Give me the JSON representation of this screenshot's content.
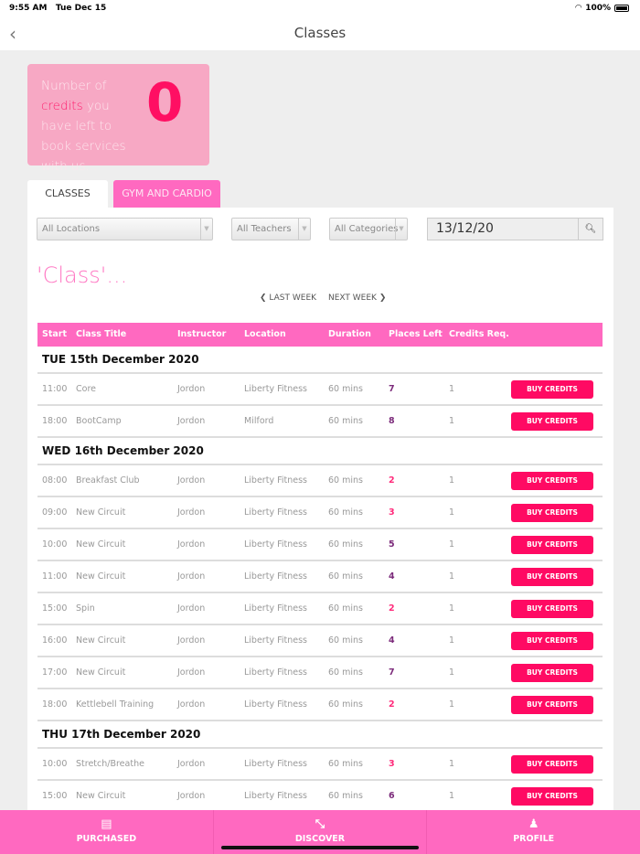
{
  "status": {
    "time": "9:55 AM",
    "date": "Tue Dec 15",
    "battery": "100%"
  },
  "nav": {
    "title": "Classes"
  },
  "credits": {
    "text_before": "Number of",
    "highlight": "credits",
    "text_after": "you have left to book services with us...",
    "count": "0"
  },
  "tabs": [
    {
      "label": "CLASSES",
      "active": true
    },
    {
      "label": "GYM AND CARDIO",
      "active": false
    }
  ],
  "filters": {
    "location": "All Locations",
    "teacher": "All Teachers",
    "category": "All Categories",
    "date": "13/12/20"
  },
  "page_title": "'Class'...",
  "week_nav": {
    "prev": "LAST WEEK",
    "next": "NEXT WEEK"
  },
  "columns": [
    "Start",
    "Class Title",
    "Instructor",
    "Location",
    "Duration",
    "Places Left",
    "Credits Req."
  ],
  "buy_label": "BUY CREDITS",
  "colors": {
    "accent": "#ff69c0",
    "button": "#ff0a63",
    "low_places": "#ff2a7a",
    "places": "#7b2a7a"
  },
  "days": [
    {
      "label": "TUE 15th December 2020",
      "rows": [
        [
          "11:00",
          "Core",
          "Jordon",
          "Liberty Fitness",
          "60 mins",
          "7",
          "1"
        ],
        [
          "18:00",
          "BootCamp",
          "Jordon",
          "Milford",
          "60 mins",
          "8",
          "1"
        ]
      ]
    },
    {
      "label": "WED 16th December 2020",
      "rows": [
        [
          "08:00",
          "Breakfast Club",
          "Jordon",
          "Liberty Fitness",
          "60 mins",
          "2",
          "1"
        ],
        [
          "09:00",
          "New Circuit",
          "Jordon",
          "Liberty Fitness",
          "60 mins",
          "3",
          "1"
        ],
        [
          "10:00",
          "New Circuit",
          "Jordon",
          "Liberty Fitness",
          "60 mins",
          "5",
          "1"
        ],
        [
          "11:00",
          "New Circuit",
          "Jordon",
          "Liberty Fitness",
          "60 mins",
          "4",
          "1"
        ],
        [
          "15:00",
          "Spin",
          "Jordon",
          "Liberty Fitness",
          "60 mins",
          "2",
          "1"
        ],
        [
          "16:00",
          "New Circuit",
          "Jordon",
          "Liberty Fitness",
          "60 mins",
          "4",
          "1"
        ],
        [
          "17:00",
          "New Circuit",
          "Jordon",
          "Liberty Fitness",
          "60 mins",
          "7",
          "1"
        ],
        [
          "18:00",
          "Kettlebell Training",
          "Jordon",
          "Liberty Fitness",
          "60 mins",
          "2",
          "1"
        ]
      ]
    },
    {
      "label": "THU 17th December 2020",
      "rows": [
        [
          "10:00",
          "Stretch/Breathe",
          "Jordon",
          "Liberty Fitness",
          "60 mins",
          "3",
          "1"
        ],
        [
          "15:00",
          "New Circuit",
          "Jordon",
          "Liberty Fitness",
          "60 mins",
          "6",
          "1"
        ]
      ]
    }
  ],
  "bottom_nav": [
    {
      "label": "PURCHASED",
      "icon": "card-icon"
    },
    {
      "label": "DISCOVER",
      "icon": "expand-arrows-icon"
    },
    {
      "label": "PROFILE",
      "icon": "person-icon"
    }
  ]
}
